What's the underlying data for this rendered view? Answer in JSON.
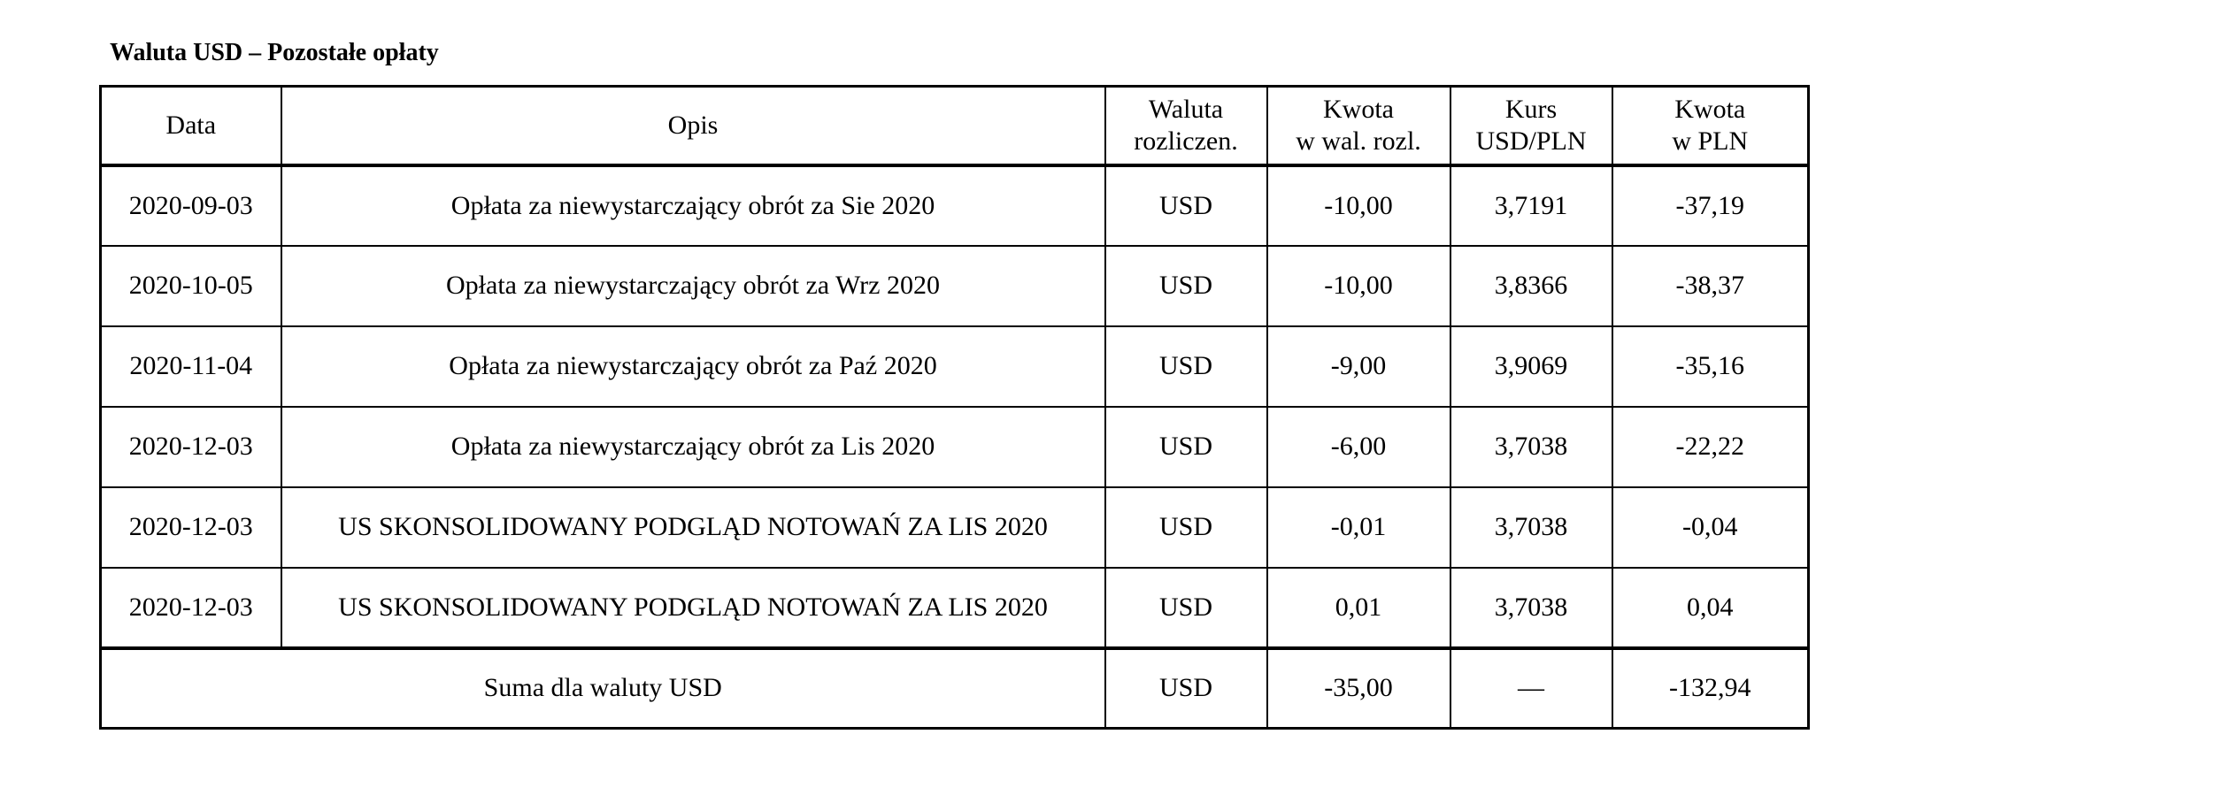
{
  "title": "Waluta USD – Pozostałe opłaty",
  "table": {
    "header": [
      [
        "Data"
      ],
      [
        "Opis"
      ],
      [
        "Waluta",
        "rozliczen."
      ],
      [
        "Kwota",
        "w wal. rozl."
      ],
      [
        "Kurs",
        "USD/PLN"
      ],
      [
        "Kwota",
        "w PLN"
      ]
    ],
    "rows": [
      [
        "2020-09-03",
        "Opłata za niewystarczający obrót za Sie 2020",
        "USD",
        "-10,00",
        "3,7191",
        "-37,19"
      ],
      [
        "2020-10-05",
        "Opłata za niewystarczający obrót za Wrz 2020",
        "USD",
        "-10,00",
        "3,8366",
        "-38,37"
      ],
      [
        "2020-11-04",
        "Opłata za niewystarczający obrót za Paź 2020",
        "USD",
        "-9,00",
        "3,9069",
        "-35,16"
      ],
      [
        "2020-12-03",
        "Opłata za niewystarczający obrót za Lis 2020",
        "USD",
        "-6,00",
        "3,7038",
        "-22,22"
      ],
      [
        "2020-12-03",
        "US SKONSOLIDOWANY PODGLĄD NOTOWAŃ ZA LIS 2020",
        "USD",
        "-0,01",
        "3,7038",
        "-0,04"
      ],
      [
        "2020-12-03",
        "US SKONSOLIDOWANY PODGLĄD NOTOWAŃ ZA LIS 2020",
        "USD",
        "0,01",
        "3,7038",
        "0,04"
      ]
    ],
    "total": [
      "Suma dla waluty USD",
      "USD",
      "-35,00",
      "—",
      "-132,94"
    ]
  }
}
